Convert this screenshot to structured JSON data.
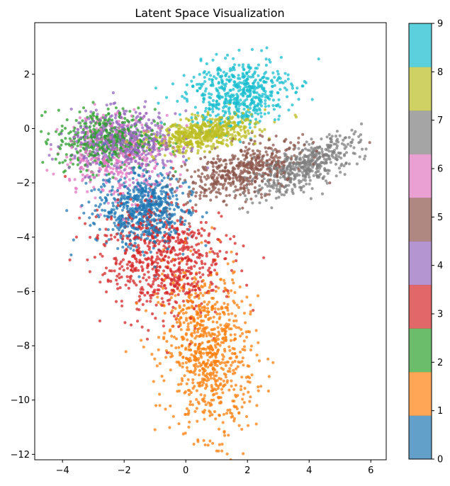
{
  "chart_data": {
    "type": "scatter",
    "title": "Latent Space Visualization",
    "xlabel": "",
    "ylabel": "",
    "xlim": [
      -4.9,
      6.5
    ],
    "ylim": [
      -12.2,
      3.9
    ],
    "grid": false,
    "x_ticks": [
      -4,
      -2,
      0,
      2,
      4,
      6
    ],
    "y_ticks": [
      2,
      0,
      -2,
      -4,
      -6,
      -8,
      -10,
      -12
    ],
    "colorbar": {
      "label": "",
      "range": [
        0,
        9
      ],
      "ticks": [
        0,
        1,
        2,
        3,
        4,
        5,
        6,
        7,
        8,
        9
      ],
      "colors": [
        "#1f77b4",
        "#ff7f0e",
        "#2ca02c",
        "#d62728",
        "#9467bd",
        "#8c564b",
        "#e377c2",
        "#7f7f7f",
        "#bcbd22",
        "#17becf"
      ]
    },
    "clusters": [
      {
        "label": 0,
        "center": [
          -1.4,
          -3.0
        ],
        "spread": [
          0.75,
          0.7
        ],
        "count": 650,
        "tilt": -0.8
      },
      {
        "label": 1,
        "center": [
          0.7,
          -8.2
        ],
        "spread": [
          0.7,
          1.55
        ],
        "count": 800,
        "tilt": 0.1
      },
      {
        "label": 2,
        "center": [
          -2.6,
          -0.4
        ],
        "spread": [
          0.8,
          0.55
        ],
        "count": 450,
        "tilt": 0.0
      },
      {
        "label": 3,
        "center": [
          -0.8,
          -4.8
        ],
        "spread": [
          0.95,
          1.1
        ],
        "count": 700,
        "tilt": 0.35
      },
      {
        "label": 4,
        "center": [
          -2.0,
          -0.5
        ],
        "spread": [
          0.85,
          0.55
        ],
        "count": 500,
        "tilt": 0.0
      },
      {
        "label": 5,
        "center": [
          1.8,
          -1.6
        ],
        "spread": [
          1.0,
          0.45
        ],
        "count": 500,
        "tilt": 0.35
      },
      {
        "label": 6,
        "center": [
          -2.2,
          -1.0
        ],
        "spread": [
          0.9,
          0.8
        ],
        "count": 350,
        "tilt": 0.0
      },
      {
        "label": 7,
        "center": [
          3.8,
          -1.4
        ],
        "spread": [
          1.0,
          0.35
        ],
        "count": 500,
        "tilt": 0.5
      },
      {
        "label": 8,
        "center": [
          0.6,
          -0.2
        ],
        "spread": [
          0.85,
          0.28
        ],
        "count": 550,
        "tilt": 0.2
      },
      {
        "label": 9,
        "center": [
          1.7,
          1.3
        ],
        "spread": [
          0.85,
          0.6
        ],
        "count": 550,
        "tilt": 0.2
      }
    ]
  }
}
